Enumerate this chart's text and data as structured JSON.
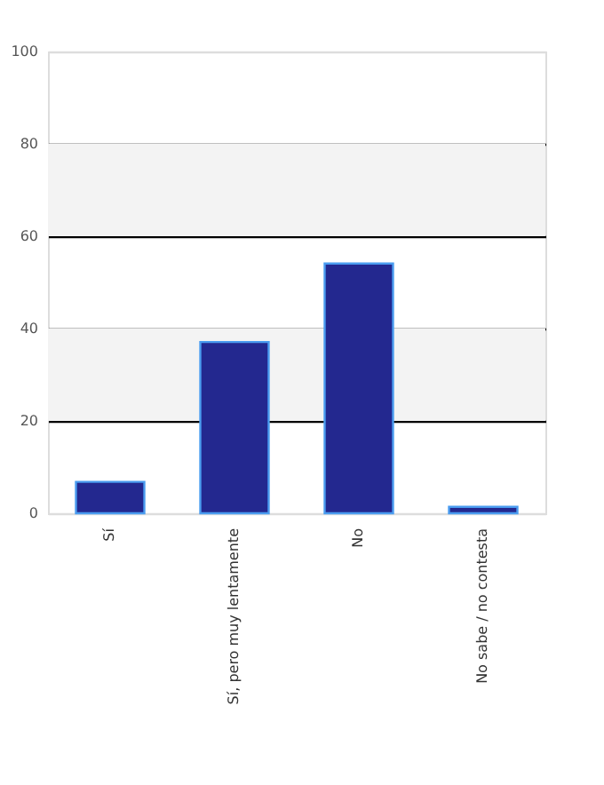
{
  "chart_data": {
    "type": "bar",
    "categories": [
      "Sí",
      "Sí, pero muy lentamente",
      "No",
      "No sabe / no contesta"
    ],
    "values": [
      6.8,
      37.1,
      54.1,
      1.4
    ],
    "color": "#23288f",
    "ylim": [
      0,
      100
    ],
    "yticks": [
      0,
      20,
      40,
      60,
      80,
      100
    ],
    "grid": "y",
    "bands": [
      {
        "axis": "y",
        "from": 20,
        "to": 40,
        "color": "#f3f3f3"
      },
      {
        "axis": "y",
        "from": 60,
        "to": 80,
        "color": "#f3f3f3"
      }
    ]
  }
}
